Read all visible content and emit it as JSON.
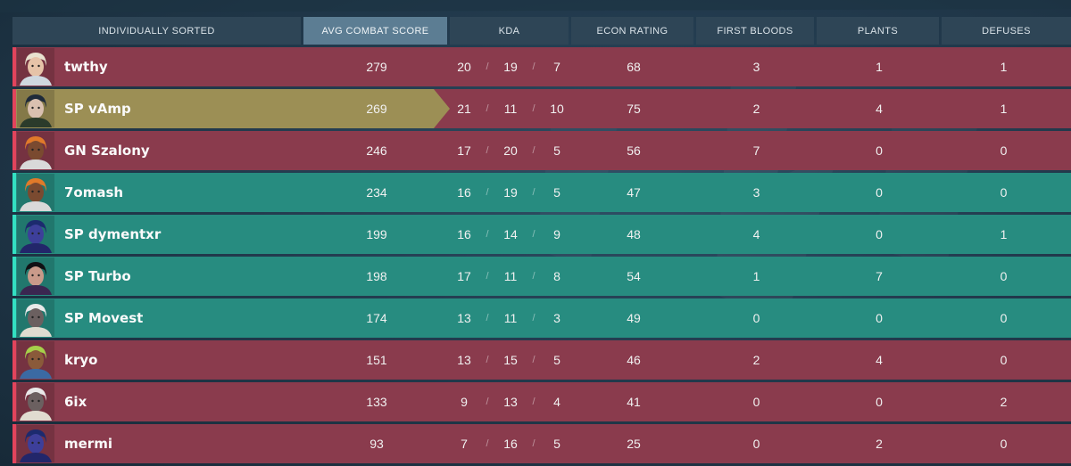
{
  "colors": {
    "enemy_row": "#8a3b4d",
    "ally_row": "#278c80",
    "self_row": "#9c8f55",
    "header": "#2e4556",
    "header_active": "#5c7d93"
  },
  "columns": [
    {
      "key": "sort",
      "label": "INDIVIDUALLY SORTED"
    },
    {
      "key": "acs",
      "label": "AVG COMBAT SCORE",
      "active": true
    },
    {
      "key": "kda",
      "label": "KDA"
    },
    {
      "key": "econ",
      "label": "ECON RATING"
    },
    {
      "key": "fb",
      "label": "FIRST BLOODS"
    },
    {
      "key": "plants",
      "label": "PLANTS"
    },
    {
      "key": "defuses",
      "label": "DEFUSES"
    }
  ],
  "kda_separator": "/",
  "players": [
    {
      "name": "twthy",
      "team": "enemy",
      "agent_icon": "sova-icon",
      "acs": "279",
      "k": "20",
      "d": "19",
      "a": "7",
      "econ": "68",
      "fb": "3",
      "plants": "1",
      "defuses": "1"
    },
    {
      "name": "SP vAmp",
      "team": "self",
      "agent_icon": "viper-icon",
      "acs": "269",
      "k": "21",
      "d": "11",
      "a": "10",
      "econ": "75",
      "fb": "2",
      "plants": "4",
      "defuses": "1"
    },
    {
      "name": "GN Szalony",
      "team": "enemy",
      "agent_icon": "phoenix-icon",
      "acs": "246",
      "k": "17",
      "d": "20",
      "a": "5",
      "econ": "56",
      "fb": "7",
      "plants": "0",
      "defuses": "0"
    },
    {
      "name": "7omash",
      "team": "ally",
      "agent_icon": "phoenix-icon",
      "acs": "234",
      "k": "16",
      "d": "19",
      "a": "5",
      "econ": "47",
      "fb": "3",
      "plants": "0",
      "defuses": "0"
    },
    {
      "name": "SP dymentxr",
      "team": "ally",
      "agent_icon": "omen-icon",
      "acs": "199",
      "k": "16",
      "d": "14",
      "a": "9",
      "econ": "48",
      "fb": "4",
      "plants": "0",
      "defuses": "1"
    },
    {
      "name": "SP Turbo",
      "team": "ally",
      "agent_icon": "reyna-icon",
      "acs": "198",
      "k": "17",
      "d": "11",
      "a": "8",
      "econ": "54",
      "fb": "1",
      "plants": "7",
      "defuses": "0"
    },
    {
      "name": "SP Movest",
      "team": "ally",
      "agent_icon": "cypher-icon",
      "acs": "174",
      "k": "13",
      "d": "11",
      "a": "3",
      "econ": "49",
      "fb": "0",
      "plants": "0",
      "defuses": "0"
    },
    {
      "name": "kryo",
      "team": "enemy",
      "agent_icon": "raze-icon",
      "acs": "151",
      "k": "13",
      "d": "15",
      "a": "5",
      "econ": "46",
      "fb": "2",
      "plants": "4",
      "defuses": "0"
    },
    {
      "name": "6ix",
      "team": "enemy",
      "agent_icon": "cypher-icon",
      "acs": "133",
      "k": "9",
      "d": "13",
      "a": "4",
      "econ": "41",
      "fb": "0",
      "plants": "0",
      "defuses": "2"
    },
    {
      "name": "mermi",
      "team": "enemy",
      "agent_icon": "omen-icon",
      "acs": "93",
      "k": "7",
      "d": "16",
      "a": "5",
      "econ": "25",
      "fb": "0",
      "plants": "2",
      "defuses": "0"
    }
  ]
}
